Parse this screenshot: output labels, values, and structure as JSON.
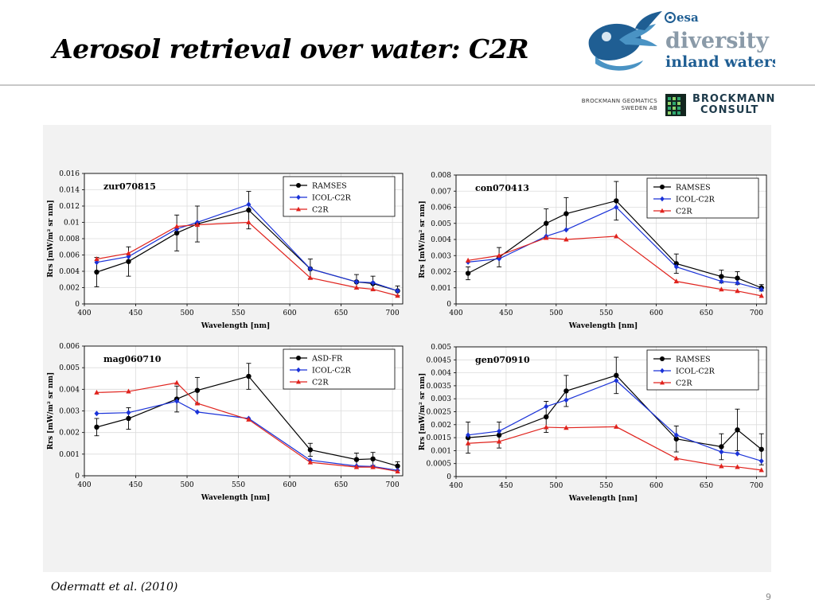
{
  "slide": {
    "title": "Aerosol retrieval over water: C2R",
    "citation": "Odermatt et al. (2010)",
    "page_number": "9"
  },
  "logos": {
    "esa": {
      "agency": "esa",
      "line1": "diversity",
      "line2": "inland waters"
    },
    "partners": {
      "bgs_line1": "Brockmann Geomatics",
      "bgs_line2": "Sweden AB",
      "bc_line1": "Brockmann",
      "bc_line2": "Consult"
    }
  },
  "colors": {
    "series1": "#000000",
    "series2": "#1a32d8",
    "series3": "#e0231d",
    "esa_dark": "#1f5e93",
    "esa_light": "#4a93c4"
  },
  "chart_data": [
    {
      "type": "line",
      "title": "zur070815",
      "xlabel": "Wavelength [nm]",
      "ylabel": "Rrs [mW/m² sr nm]",
      "xlim": [
        400,
        710
      ],
      "ylim": [
        0,
        0.016
      ],
      "xticks": [
        400,
        450,
        500,
        550,
        600,
        650,
        700
      ],
      "xtick_labels": [
        "400",
        "450",
        "500",
        "550",
        "600",
        "650",
        "700"
      ],
      "yticks": [
        0,
        0.002,
        0.004,
        0.006,
        0.008,
        0.01,
        0.012,
        0.014,
        0.016
      ],
      "ytick_labels": [
        "0",
        "0.002",
        "0.004",
        "0.006",
        "0.008",
        "0.01",
        "0.012",
        "0.014",
        "0.016"
      ],
      "legend": "top-right",
      "series": [
        {
          "name": "RAMSES",
          "color": "#000000",
          "marker": "circle",
          "x": [
            412,
            443,
            490,
            510,
            560,
            620,
            665,
            681,
            705
          ],
          "y": [
            0.0039,
            0.0052,
            0.0087,
            0.0098,
            0.0115,
            0.0043,
            0.0027,
            0.0025,
            0.0016
          ],
          "err": [
            0.0018,
            0.0018,
            0.0022,
            0.0022,
            0.0023,
            0.0012,
            0.0009,
            0.0009,
            0.0006
          ]
        },
        {
          "name": "ICOL-C2R",
          "color": "#1a32d8",
          "marker": "diamond",
          "x": [
            412,
            443,
            490,
            510,
            560,
            620,
            665,
            681,
            705
          ],
          "y": [
            0.0051,
            0.0058,
            0.0092,
            0.01,
            0.0122,
            0.0043,
            0.0027,
            0.0026,
            0.0016
          ]
        },
        {
          "name": "C2R",
          "color": "#e0231d",
          "marker": "triangle",
          "x": [
            412,
            443,
            490,
            510,
            560,
            620,
            665,
            681,
            705
          ],
          "y": [
            0.0055,
            0.0062,
            0.0095,
            0.0097,
            0.01,
            0.0032,
            0.002,
            0.0018,
            0.001
          ]
        }
      ]
    },
    {
      "type": "line",
      "title": "con070413",
      "xlabel": "Wavelength [nm]",
      "ylabel": "Rrs [mW/m² sr nm]",
      "xlim": [
        400,
        710
      ],
      "ylim": [
        0,
        0.008
      ],
      "xticks": [
        400,
        450,
        500,
        550,
        600,
        650,
        700
      ],
      "xtick_labels": [
        "400",
        "450",
        "500",
        "550",
        "600",
        "650",
        "700"
      ],
      "yticks": [
        0,
        0.001,
        0.002,
        0.003,
        0.004,
        0.005,
        0.006,
        0.007,
        0.008
      ],
      "ytick_labels": [
        "0",
        "0.001",
        "0.002",
        "0.003",
        "0.004",
        "0.005",
        "0.006",
        "0.007",
        "0.008"
      ],
      "legend": "top-right",
      "series": [
        {
          "name": "RAMSES",
          "color": "#000000",
          "marker": "circle",
          "x": [
            412,
            443,
            490,
            510,
            560,
            620,
            665,
            681,
            705
          ],
          "y": [
            0.0019,
            0.0029,
            0.005,
            0.0056,
            0.0064,
            0.0025,
            0.0017,
            0.0016,
            0.001
          ],
          "err": [
            0.0004,
            0.0006,
            0.0009,
            0.001,
            0.0012,
            0.0006,
            0.0004,
            0.0004,
            0.0002
          ]
        },
        {
          "name": "ICOL-C2R",
          "color": "#1a32d8",
          "marker": "diamond",
          "x": [
            412,
            443,
            490,
            510,
            560,
            620,
            665,
            681,
            705
          ],
          "y": [
            0.0026,
            0.0028,
            0.0042,
            0.0046,
            0.006,
            0.0023,
            0.0014,
            0.0013,
            0.0009
          ]
        },
        {
          "name": "C2R",
          "color": "#e0231d",
          "marker": "triangle",
          "x": [
            412,
            443,
            490,
            510,
            560,
            620,
            665,
            681,
            705
          ],
          "y": [
            0.0027,
            0.003,
            0.0041,
            0.004,
            0.0042,
            0.0014,
            0.0009,
            0.0008,
            0.0005
          ]
        }
      ]
    },
    {
      "type": "line",
      "title": "mag060710",
      "xlabel": "Wavelength [nm]",
      "ylabel": "Rrs [mW/m² sr nm]",
      "xlim": [
        400,
        710
      ],
      "ylim": [
        0,
        0.006
      ],
      "xticks": [
        400,
        450,
        500,
        550,
        600,
        650,
        700
      ],
      "xtick_labels": [
        "400",
        "450",
        "500",
        "550",
        "600",
        "650",
        "700"
      ],
      "yticks": [
        0,
        0.001,
        0.002,
        0.003,
        0.004,
        0.005,
        0.006
      ],
      "ytick_labels": [
        "0",
        "0.001",
        "0.002",
        "0.003",
        "0.004",
        "0.005",
        "0.006"
      ],
      "legend": "top-right",
      "series": [
        {
          "name": "ASD-FR",
          "color": "#000000",
          "marker": "circle",
          "x": [
            412,
            443,
            490,
            510,
            560,
            620,
            665,
            681,
            705
          ],
          "y": [
            0.00225,
            0.00265,
            0.00355,
            0.00395,
            0.0046,
            0.0012,
            0.00075,
            0.00078,
            0.00045
          ],
          "err": [
            0.0004,
            0.0005,
            0.0006,
            0.0006,
            0.0006,
            0.0003,
            0.0003,
            0.0003,
            0.0002
          ]
        },
        {
          "name": "ICOL-C2R",
          "color": "#1a32d8",
          "marker": "diamond",
          "x": [
            412,
            443,
            490,
            510,
            560,
            620,
            665,
            681,
            705
          ],
          "y": [
            0.00288,
            0.00292,
            0.00345,
            0.00295,
            0.00265,
            0.00072,
            0.00045,
            0.00043,
            0.00025
          ]
        },
        {
          "name": "C2R",
          "color": "#e0231d",
          "marker": "triangle",
          "x": [
            412,
            443,
            490,
            510,
            560,
            620,
            665,
            681,
            705
          ],
          "y": [
            0.00385,
            0.0039,
            0.0043,
            0.00335,
            0.0026,
            0.00062,
            0.0004,
            0.0004,
            0.0002
          ]
        }
      ]
    },
    {
      "type": "line",
      "title": "gen070910",
      "xlabel": "Wavelength [nm]",
      "ylabel": "Rrs [mW/m² sr nm]",
      "xlim": [
        400,
        710
      ],
      "ylim": [
        0,
        0.005
      ],
      "xticks": [
        400,
        450,
        500,
        550,
        600,
        650,
        700
      ],
      "xtick_labels": [
        "400",
        "450",
        "500",
        "550",
        "600",
        "650",
        "700"
      ],
      "yticks": [
        0,
        0.0005,
        0.001,
        0.0015,
        0.002,
        0.0025,
        0.003,
        0.0035,
        0.004,
        0.0045,
        0.005
      ],
      "ytick_labels": [
        "0",
        "0.0005",
        "0.001",
        "0.0015",
        "0.002",
        "0.0025",
        "0.003",
        "0.0035",
        "0.004",
        "0.0045",
        "0.005"
      ],
      "legend": "top-right",
      "series": [
        {
          "name": "RAMSES",
          "color": "#000000",
          "marker": "circle",
          "x": [
            412,
            443,
            490,
            510,
            560,
            620,
            665,
            681,
            705
          ],
          "y": [
            0.0015,
            0.0016,
            0.0023,
            0.0033,
            0.0039,
            0.00145,
            0.00115,
            0.0018,
            0.00105
          ],
          "err": [
            0.0006,
            0.0005,
            0.0006,
            0.0006,
            0.0007,
            0.0005,
            0.0005,
            0.0008,
            0.0006
          ]
        },
        {
          "name": "ICOL-C2R",
          "color": "#1a32d8",
          "marker": "diamond",
          "x": [
            412,
            443,
            490,
            510,
            560,
            620,
            665,
            681,
            705
          ],
          "y": [
            0.0016,
            0.00175,
            0.0027,
            0.00295,
            0.0037,
            0.0016,
            0.00095,
            0.00088,
            0.0006
          ]
        },
        {
          "name": "C2R",
          "color": "#e0231d",
          "marker": "triangle",
          "x": [
            412,
            443,
            490,
            510,
            560,
            620,
            665,
            681,
            705
          ],
          "y": [
            0.00128,
            0.00135,
            0.0019,
            0.00188,
            0.00192,
            0.0007,
            0.0004,
            0.00037,
            0.00025
          ]
        }
      ]
    }
  ]
}
